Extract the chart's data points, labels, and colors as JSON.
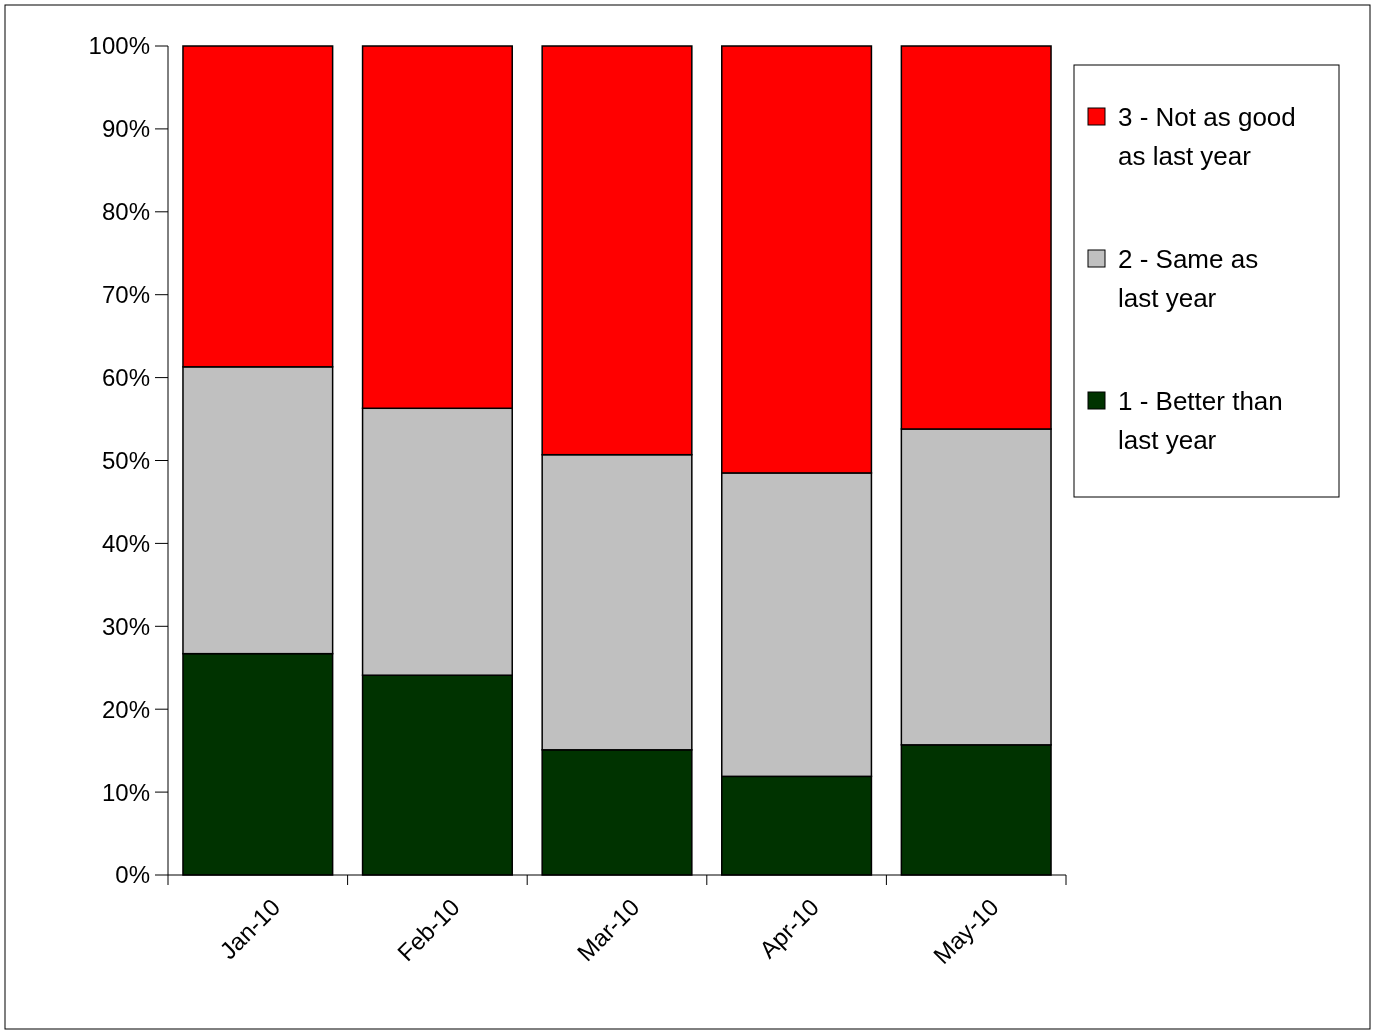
{
  "chart_data": {
    "type": "bar",
    "stacked": true,
    "categories": [
      "Jan-10",
      "Feb-10",
      "Mar-10",
      "Apr-10",
      "May-10"
    ],
    "series": [
      {
        "name": "1 - Better than last year",
        "color": "#003300",
        "values": [
          26.7,
          24.1,
          15.1,
          11.9,
          15.7
        ]
      },
      {
        "name": "2 - Same as last year",
        "color": "#c0c0c0",
        "values": [
          34.6,
          32.2,
          35.6,
          36.6,
          38.1
        ]
      },
      {
        "name": "3 - Not as good as last year",
        "color": "#ff0000",
        "values": [
          38.7,
          43.7,
          49.3,
          51.5,
          46.2
        ]
      }
    ],
    "ylim": [
      0,
      100
    ],
    "yticks": [
      {
        "value": 0,
        "label": "0%"
      },
      {
        "value": 10,
        "label": "10%"
      },
      {
        "value": 20,
        "label": "20%"
      },
      {
        "value": 30,
        "label": "30%"
      },
      {
        "value": 40,
        "label": "40%"
      },
      {
        "value": 50,
        "label": "50%"
      },
      {
        "value": 60,
        "label": "60%"
      },
      {
        "value": 70,
        "label": "70%"
      },
      {
        "value": 80,
        "label": "80%"
      },
      {
        "value": 90,
        "label": "90%"
      },
      {
        "value": 100,
        "label": "100%"
      }
    ],
    "legend": "right",
    "grid": false
  }
}
